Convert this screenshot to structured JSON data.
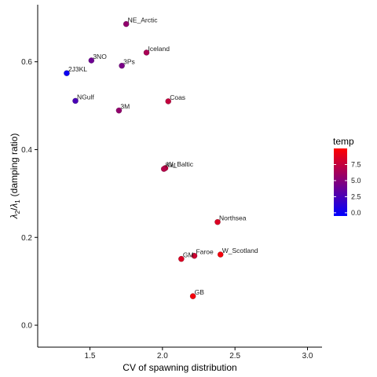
{
  "chart_data": {
    "type": "scatter",
    "title": "",
    "xlabel": "CV of spawning distribution",
    "ylabel_main": "(damping ratio)",
    "ylabel_symbol_numer": "λ",
    "ylabel_sub_numer": "2",
    "ylabel_slash": "/",
    "ylabel_symbol_denom": "λ",
    "ylabel_sub_denom": "1",
    "xlim": [
      1.14,
      3.1
    ],
    "ylim": [
      -0.05,
      0.73
    ],
    "xticks": [
      1.5,
      2.0,
      2.5,
      3.0
    ],
    "xtick_labels": [
      "1.5",
      "2.0",
      "2.5",
      "3.0"
    ],
    "yticks": [
      0.0,
      0.2,
      0.4,
      0.6
    ],
    "ytick_labels": [
      "0.0",
      "0.2",
      "0.4",
      "0.6"
    ],
    "grid": false,
    "color_variable": "temp",
    "color_range": [
      -0.5,
      10
    ],
    "color_low": "#0000ff",
    "color_high": "#ff0000",
    "legend": {
      "title": "temp",
      "ticks": [
        0.0,
        2.5,
        5.0,
        7.5
      ],
      "tick_labels": [
        "0.0",
        "2.5",
        "5.0",
        "7.5"
      ],
      "placement": "right"
    },
    "points": [
      {
        "label": "NE_Arctic",
        "x": 1.75,
        "y": 0.686,
        "temp": 5.5
      },
      {
        "label": "Iceland",
        "x": 1.89,
        "y": 0.621,
        "temp": 6.5
      },
      {
        "label": "3NO",
        "x": 1.51,
        "y": 0.603,
        "temp": 4.0
      },
      {
        "label": "3Ps",
        "x": 1.72,
        "y": 0.591,
        "temp": 4.5
      },
      {
        "label": "2J3KL",
        "x": 1.34,
        "y": 0.574,
        "temp": 0.0
      },
      {
        "label": "NGulf",
        "x": 1.4,
        "y": 0.511,
        "temp": 2.5
      },
      {
        "label": "Coas",
        "x": 2.04,
        "y": 0.51,
        "temp": 7.5
      },
      {
        "label": "3M",
        "x": 1.7,
        "y": 0.489,
        "temp": 5.5
      },
      {
        "label": "W_Baltic",
        "x": 2.02,
        "y": 0.358,
        "temp": 7.5
      },
      {
        "label": "Kat",
        "x": 2.01,
        "y": 0.356,
        "temp": 7.0
      },
      {
        "label": "Northsea",
        "x": 2.38,
        "y": 0.235,
        "temp": 8.5
      },
      {
        "label": "W_Scotland",
        "x": 2.4,
        "y": 0.161,
        "temp": 9.5
      },
      {
        "label": "Faroe",
        "x": 2.22,
        "y": 0.158,
        "temp": 8.0
      },
      {
        "label": "GM",
        "x": 2.13,
        "y": 0.151,
        "temp": 8.5
      },
      {
        "label": "GB",
        "x": 2.21,
        "y": 0.066,
        "temp": 9.5
      }
    ]
  }
}
